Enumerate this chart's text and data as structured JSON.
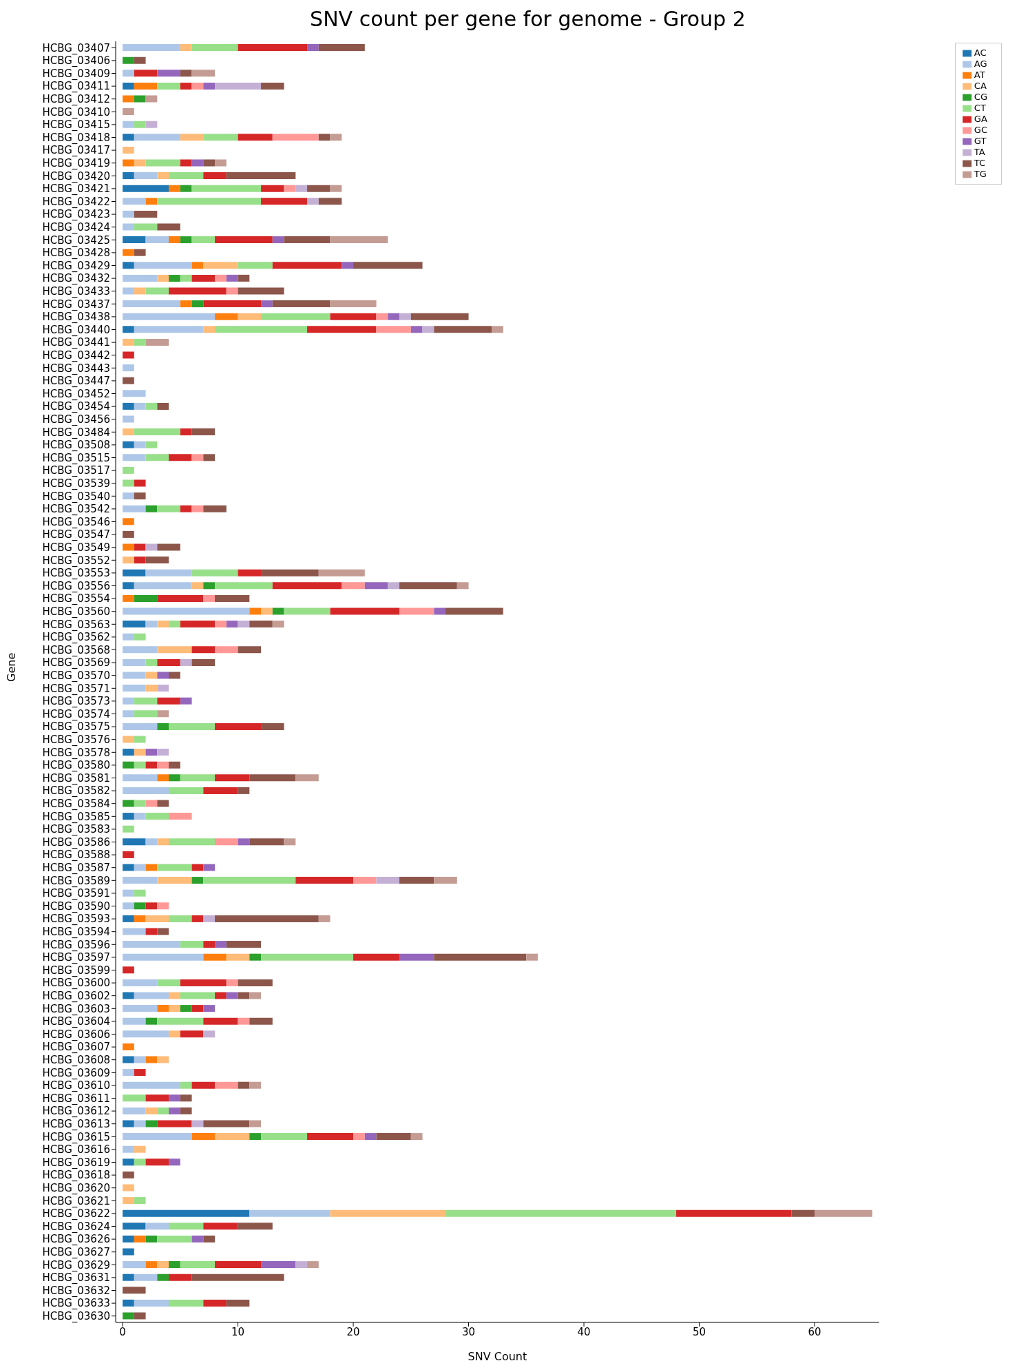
{
  "chart_data": {
    "type": "bar",
    "orientation": "horizontal",
    "stacked": true,
    "title": "SNV count per gene for genome - Group 2",
    "xlabel": "SNV Count",
    "ylabel": "Gene",
    "categories": [
      "HCBG_03407",
      "HCBG_03406",
      "HCBG_03409",
      "HCBG_03411",
      "HCBG_03412",
      "HCBG_03410",
      "HCBG_03415",
      "HCBG_03418",
      "HCBG_03417",
      "HCBG_03419",
      "HCBG_03420",
      "HCBG_03421",
      "HCBG_03422",
      "HCBG_03423",
      "HCBG_03424",
      "HCBG_03425",
      "HCBG_03428",
      "HCBG_03429",
      "HCBG_03432",
      "HCBG_03433",
      "HCBG_03437",
      "HCBG_03438",
      "HCBG_03440",
      "HCBG_03441",
      "HCBG_03442",
      "HCBG_03443",
      "HCBG_03447",
      "HCBG_03452",
      "HCBG_03454",
      "HCBG_03456",
      "HCBG_03484",
      "HCBG_03508",
      "HCBG_03515",
      "HCBG_03517",
      "HCBG_03539",
      "HCBG_03540",
      "HCBG_03542",
      "HCBG_03546",
      "HCBG_03547",
      "HCBG_03549",
      "HCBG_03552",
      "HCBG_03553",
      "HCBG_03556",
      "HCBG_03554",
      "HCBG_03560",
      "HCBG_03563",
      "HCBG_03562",
      "HCBG_03568",
      "HCBG_03569",
      "HCBG_03570",
      "HCBG_03571",
      "HCBG_03573",
      "HCBG_03574",
      "HCBG_03575",
      "HCBG_03576",
      "HCBG_03578",
      "HCBG_03580",
      "HCBG_03581",
      "HCBG_03582",
      "HCBG_03584",
      "HCBG_03585",
      "HCBG_03583",
      "HCBG_03586",
      "HCBG_03588",
      "HCBG_03587",
      "HCBG_03589",
      "HCBG_03591",
      "HCBG_03590",
      "HCBG_03593",
      "HCBG_03594",
      "HCBG_03596",
      "HCBG_03597",
      "HCBG_03599",
      "HCBG_03600",
      "HCBG_03602",
      "HCBG_03603",
      "HCBG_03604",
      "HCBG_03606",
      "HCBG_03607",
      "HCBG_03608",
      "HCBG_03609",
      "HCBG_03610",
      "HCBG_03611",
      "HCBG_03612",
      "HCBG_03613",
      "HCBG_03615",
      "HCBG_03616",
      "HCBG_03619",
      "HCBG_03618",
      "HCBG_03620",
      "HCBG_03621",
      "HCBG_03622",
      "HCBG_03624",
      "HCBG_03626",
      "HCBG_03627",
      "HCBG_03629",
      "HCBG_03631",
      "HCBG_03632",
      "HCBG_03633",
      "HCBG_03630"
    ],
    "series": [
      {
        "name": "AC",
        "color": "#1f77b4",
        "values": [
          0,
          0,
          0,
          1,
          0,
          0,
          0,
          1,
          0,
          0,
          1,
          4,
          0,
          0,
          0,
          2,
          0,
          1,
          0,
          0,
          0,
          0,
          1,
          0,
          0,
          0,
          0,
          0,
          1,
          0,
          0,
          1,
          0,
          0,
          0,
          0,
          0,
          0,
          0,
          0,
          0,
          2,
          1,
          0,
          0,
          2,
          0,
          0,
          0,
          0,
          0,
          0,
          0,
          0,
          0,
          1,
          0,
          0,
          0,
          0,
          1,
          0,
          2,
          0,
          1,
          0,
          0,
          0,
          1,
          0,
          0,
          0,
          0,
          0,
          1,
          0,
          0,
          0,
          0,
          1,
          0,
          0,
          0,
          0,
          1,
          0,
          0,
          1,
          0,
          0,
          0,
          11,
          2,
          1,
          1,
          0,
          1,
          0,
          1,
          0
        ]
      },
      {
        "name": "AG",
        "color": "#aec7e8",
        "values": [
          5,
          0,
          1,
          0,
          0,
          0,
          1,
          4,
          0,
          0,
          2,
          0,
          2,
          1,
          1,
          2,
          0,
          5,
          3,
          1,
          5,
          8,
          6,
          0,
          0,
          1,
          0,
          2,
          1,
          1,
          0,
          1,
          2,
          0,
          0,
          1,
          2,
          0,
          0,
          0,
          0,
          4,
          5,
          0,
          11,
          1,
          1,
          3,
          2,
          2,
          2,
          1,
          1,
          3,
          0,
          0,
          0,
          3,
          4,
          0,
          1,
          0,
          1,
          0,
          1,
          3,
          1,
          1,
          0,
          2,
          5,
          7,
          0,
          3,
          3,
          3,
          2,
          4,
          0,
          1,
          1,
          5,
          0,
          2,
          1,
          6,
          1,
          0,
          0,
          0,
          0,
          7,
          2,
          0,
          0,
          2,
          2,
          0,
          3,
          0
        ]
      },
      {
        "name": "AT",
        "color": "#ff7f0e",
        "values": [
          0,
          0,
          0,
          2,
          1,
          0,
          0,
          0,
          0,
          1,
          0,
          1,
          1,
          0,
          0,
          1,
          1,
          1,
          0,
          0,
          1,
          2,
          0,
          0,
          0,
          0,
          0,
          0,
          0,
          0,
          0,
          0,
          0,
          0,
          0,
          0,
          0,
          1,
          0,
          1,
          0,
          0,
          0,
          1,
          1,
          0,
          0,
          0,
          0,
          0,
          0,
          0,
          0,
          0,
          0,
          0,
          0,
          1,
          0,
          0,
          0,
          0,
          0,
          0,
          1,
          0,
          0,
          0,
          1,
          0,
          0,
          2,
          0,
          0,
          0,
          1,
          0,
          0,
          1,
          1,
          0,
          0,
          0,
          0,
          0,
          2,
          0,
          0,
          0,
          0,
          0,
          0,
          0,
          1,
          0,
          1,
          0,
          0,
          0,
          0
        ]
      },
      {
        "name": "CA",
        "color": "#ffbb78",
        "values": [
          1,
          0,
          0,
          0,
          0,
          0,
          0,
          2,
          1,
          1,
          1,
          0,
          0,
          0,
          0,
          0,
          0,
          3,
          1,
          1,
          0,
          2,
          1,
          1,
          0,
          0,
          0,
          0,
          0,
          0,
          1,
          0,
          0,
          0,
          0,
          0,
          0,
          0,
          0,
          0,
          1,
          0,
          1,
          0,
          1,
          1,
          0,
          3,
          0,
          1,
          1,
          0,
          0,
          0,
          1,
          1,
          0,
          0,
          0,
          0,
          0,
          0,
          1,
          0,
          0,
          3,
          0,
          0,
          2,
          0,
          0,
          2,
          0,
          0,
          1,
          1,
          0,
          1,
          0,
          1,
          0,
          0,
          0,
          1,
          0,
          3,
          1,
          0,
          0,
          1,
          1,
          10,
          0,
          0,
          0,
          1,
          0,
          0,
          0,
          0
        ]
      },
      {
        "name": "CG",
        "color": "#2ca02c",
        "values": [
          0,
          1,
          0,
          0,
          1,
          0,
          0,
          0,
          0,
          0,
          0,
          1,
          0,
          0,
          0,
          1,
          0,
          0,
          1,
          0,
          1,
          0,
          0,
          0,
          0,
          0,
          0,
          0,
          0,
          0,
          0,
          0,
          0,
          0,
          0,
          0,
          1,
          0,
          0,
          0,
          0,
          0,
          1,
          2,
          1,
          0,
          0,
          0,
          0,
          0,
          0,
          0,
          0,
          1,
          0,
          0,
          1,
          1,
          0,
          1,
          0,
          0,
          0,
          0,
          0,
          1,
          0,
          1,
          0,
          0,
          0,
          1,
          0,
          0,
          0,
          1,
          1,
          0,
          0,
          0,
          0,
          0,
          0,
          0,
          1,
          1,
          0,
          0,
          0,
          0,
          0,
          0,
          0,
          1,
          0,
          1,
          1,
          0,
          0,
          1
        ]
      },
      {
        "name": "CT",
        "color": "#98df8a",
        "values": [
          4,
          0,
          0,
          2,
          0,
          0,
          1,
          3,
          0,
          3,
          3,
          6,
          9,
          0,
          2,
          2,
          0,
          3,
          1,
          2,
          0,
          6,
          8,
          1,
          0,
          0,
          0,
          0,
          1,
          0,
          4,
          1,
          2,
          1,
          1,
          0,
          2,
          0,
          0,
          0,
          0,
          4,
          5,
          0,
          4,
          1,
          1,
          0,
          1,
          0,
          0,
          2,
          2,
          4,
          1,
          0,
          1,
          3,
          3,
          1,
          2,
          1,
          4,
          0,
          3,
          8,
          1,
          0,
          2,
          0,
          2,
          8,
          0,
          2,
          3,
          0,
          4,
          0,
          0,
          0,
          0,
          1,
          2,
          1,
          0,
          4,
          0,
          1,
          0,
          0,
          1,
          20,
          3,
          3,
          0,
          3,
          0,
          0,
          3,
          0
        ]
      },
      {
        "name": "GA",
        "color": "#d62728",
        "values": [
          6,
          0,
          2,
          1,
          0,
          0,
          0,
          3,
          0,
          1,
          2,
          2,
          4,
          0,
          0,
          5,
          0,
          6,
          2,
          5,
          5,
          4,
          6,
          0,
          1,
          0,
          0,
          0,
          0,
          0,
          1,
          0,
          2,
          0,
          1,
          0,
          1,
          0,
          0,
          1,
          1,
          2,
          6,
          4,
          6,
          3,
          0,
          2,
          2,
          0,
          0,
          2,
          0,
          4,
          0,
          0,
          1,
          3,
          3,
          0,
          0,
          0,
          0,
          1,
          1,
          5,
          0,
          1,
          1,
          1,
          1,
          4,
          1,
          4,
          1,
          1,
          3,
          2,
          0,
          0,
          1,
          2,
          2,
          0,
          3,
          4,
          0,
          2,
          0,
          0,
          0,
          10,
          3,
          0,
          0,
          4,
          2,
          0,
          2,
          0
        ]
      },
      {
        "name": "GC",
        "color": "#ff9896",
        "values": [
          0,
          0,
          0,
          1,
          0,
          0,
          0,
          4,
          0,
          0,
          0,
          1,
          0,
          0,
          0,
          0,
          0,
          0,
          1,
          1,
          0,
          1,
          3,
          0,
          0,
          0,
          0,
          0,
          0,
          0,
          0,
          0,
          1,
          0,
          0,
          0,
          1,
          0,
          0,
          0,
          0,
          0,
          2,
          1,
          3,
          1,
          0,
          2,
          0,
          0,
          0,
          0,
          0,
          0,
          0,
          0,
          1,
          0,
          0,
          1,
          2,
          0,
          2,
          0,
          0,
          2,
          0,
          1,
          0,
          0,
          0,
          0,
          0,
          1,
          0,
          0,
          1,
          0,
          0,
          0,
          0,
          2,
          0,
          0,
          0,
          1,
          0,
          0,
          0,
          0,
          0,
          0,
          0,
          0,
          0,
          0,
          0,
          0,
          0,
          0
        ]
      },
      {
        "name": "GT",
        "color": "#9467bd",
        "values": [
          1,
          0,
          2,
          1,
          0,
          0,
          0,
          0,
          0,
          1,
          0,
          0,
          0,
          0,
          0,
          1,
          0,
          1,
          1,
          0,
          1,
          1,
          1,
          0,
          0,
          0,
          0,
          0,
          0,
          0,
          0,
          0,
          0,
          0,
          0,
          0,
          0,
          0,
          0,
          0,
          0,
          0,
          2,
          0,
          1,
          1,
          0,
          0,
          0,
          1,
          0,
          1,
          0,
          0,
          0,
          1,
          0,
          0,
          0,
          0,
          0,
          0,
          1,
          0,
          1,
          0,
          0,
          0,
          0,
          0,
          1,
          3,
          0,
          0,
          1,
          1,
          0,
          0,
          0,
          0,
          0,
          0,
          1,
          1,
          0,
          1,
          0,
          1,
          0,
          0,
          0,
          0,
          0,
          1,
          0,
          3,
          0,
          0,
          0,
          0
        ]
      },
      {
        "name": "TA",
        "color": "#c5b0d5",
        "values": [
          0,
          0,
          0,
          4,
          0,
          0,
          1,
          0,
          0,
          0,
          0,
          1,
          1,
          0,
          0,
          0,
          0,
          0,
          0,
          0,
          0,
          1,
          1,
          0,
          0,
          0,
          0,
          0,
          0,
          0,
          0,
          0,
          0,
          0,
          0,
          0,
          0,
          0,
          0,
          1,
          0,
          0,
          1,
          0,
          0,
          1,
          0,
          0,
          1,
          0,
          1,
          0,
          0,
          0,
          0,
          1,
          0,
          0,
          0,
          0,
          0,
          0,
          0,
          0,
          0,
          2,
          0,
          0,
          1,
          0,
          0,
          0,
          0,
          0,
          0,
          0,
          0,
          1,
          0,
          0,
          0,
          0,
          0,
          0,
          1,
          0,
          0,
          0,
          0,
          0,
          0,
          0,
          0,
          0,
          0,
          1,
          0,
          0,
          0,
          0
        ]
      },
      {
        "name": "TC",
        "color": "#8c564b",
        "values": [
          4,
          1,
          1,
          2,
          0,
          0,
          0,
          1,
          0,
          1,
          6,
          2,
          2,
          2,
          2,
          4,
          1,
          6,
          1,
          4,
          5,
          5,
          5,
          0,
          0,
          0,
          1,
          0,
          1,
          0,
          2,
          0,
          1,
          0,
          0,
          1,
          2,
          0,
          1,
          2,
          2,
          5,
          5,
          3,
          5,
          2,
          0,
          2,
          2,
          1,
          0,
          0,
          0,
          2,
          0,
          0,
          1,
          4,
          1,
          1,
          0,
          0,
          3,
          0,
          0,
          3,
          0,
          0,
          9,
          1,
          3,
          8,
          0,
          3,
          1,
          0,
          2,
          0,
          0,
          0,
          0,
          1,
          1,
          1,
          4,
          3,
          0,
          0,
          1,
          0,
          0,
          2,
          3,
          1,
          0,
          0,
          8,
          2,
          2,
          1
        ]
      },
      {
        "name": "TG",
        "color": "#c49c94",
        "values": [
          0,
          0,
          2,
          0,
          1,
          1,
          0,
          1,
          0,
          1,
          0,
          1,
          0,
          0,
          0,
          5,
          0,
          0,
          0,
          0,
          4,
          0,
          1,
          2,
          0,
          0,
          0,
          0,
          0,
          0,
          0,
          0,
          0,
          0,
          0,
          0,
          0,
          0,
          0,
          0,
          0,
          4,
          1,
          0,
          0,
          1,
          0,
          0,
          0,
          0,
          0,
          0,
          1,
          0,
          0,
          0,
          0,
          2,
          0,
          0,
          0,
          0,
          1,
          0,
          0,
          2,
          0,
          0,
          1,
          0,
          0,
          1,
          0,
          0,
          1,
          0,
          0,
          0,
          0,
          0,
          0,
          1,
          0,
          0,
          1,
          1,
          0,
          0,
          0,
          0,
          0,
          5,
          0,
          0,
          0,
          1,
          0,
          0,
          0,
          0
        ]
      }
    ],
    "xlim": [
      -0.6,
      65.6
    ],
    "xticks": [
      0,
      10,
      20,
      30,
      40,
      50,
      60
    ],
    "grid": false,
    "legend": "top right"
  }
}
